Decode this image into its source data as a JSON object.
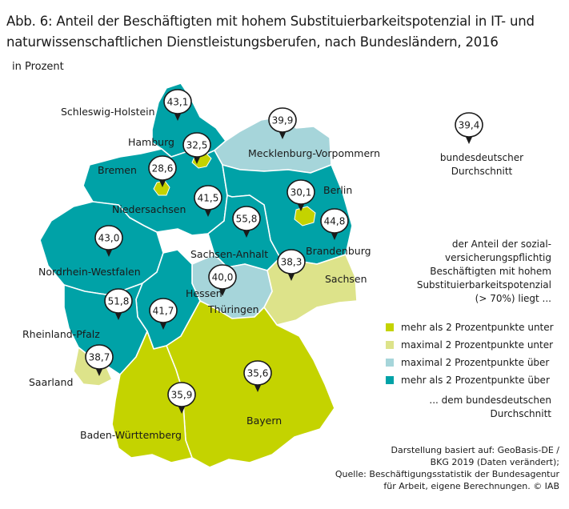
{
  "title": "Abb. 6: Anteil der Beschäftigten mit hohem Substituierbarkeitspotenzial in IT- und naturwissenschaftlichen Dienstleistungsberufen, nach Bundesländern, 2016",
  "subtitle": "in Prozent",
  "colors": {
    "more_below": "#c4d300",
    "max_below": "#dde38a",
    "max_above": "#a6d5da",
    "more_above": "#00a2a7",
    "border": "#ffffff",
    "pin": "#1a1a1a"
  },
  "national_average": {
    "value": "39,4",
    "label_line1": "bundesdeutscher",
    "label_line2": "Durchschnitt"
  },
  "legend": {
    "intro_lines": [
      "der Anteil der sozial-",
      "versicherungspflichtig",
      "Beschäftigten mit hohem",
      "Substituierbarkeitspotenzial",
      "(> 70%) liegt ..."
    ],
    "items": [
      {
        "label": "mehr als 2 Prozentpunkte unter",
        "color": "#c4d300"
      },
      {
        "label": "maximal 2 Prozentpunkte unter",
        "color": "#dde38a"
      },
      {
        "label": "maximal 2 Prozentpunkte über",
        "color": "#a6d5da"
      },
      {
        "label": "mehr als 2 Prozentpunkte über",
        "color": "#00a2a7"
      }
    ],
    "outro_lines": [
      "...  dem bundesdeutschen",
      "Durchschnitt"
    ]
  },
  "source_lines": [
    "Darstellung basiert auf: GeoBasis-DE /",
    "BKG 2019 (Daten verändert);",
    "Quelle: Beschäftigungsstatistik der Bundesagentur",
    "für Arbeit, eigene Berechnungen. © IAB"
  ],
  "states": [
    {
      "key": "schleswig_holstein",
      "name": "Schleswig-Holstein",
      "value": "43,1",
      "category": "more_above"
    },
    {
      "key": "hamburg",
      "name": "Hamburg",
      "value": "32,5",
      "category": "more_below"
    },
    {
      "key": "mecklenburg_vorpommern",
      "name": "Mecklenburg-Vorpommern",
      "value": "39,9",
      "category": "max_above"
    },
    {
      "key": "bremen",
      "name": "Bremen",
      "value": "28,6",
      "category": "more_below"
    },
    {
      "key": "niedersachsen",
      "name": "Niedersachsen",
      "value": "41,5",
      "category": "more_above"
    },
    {
      "key": "berlin",
      "name": "Berlin",
      "value": "30,1",
      "category": "more_below"
    },
    {
      "key": "brandenburg",
      "name": "Brandenburg",
      "value": "44,8",
      "category": "more_above"
    },
    {
      "key": "sachsen_anhalt",
      "name": "Sachsen-Anhalt",
      "value": "55,8",
      "category": "more_above"
    },
    {
      "key": "nordrhein_westfalen",
      "name": "Nordrhein-Westfalen",
      "value": "43,0",
      "category": "more_above"
    },
    {
      "key": "sachsen",
      "name": "Sachsen",
      "value": "38,3",
      "category": "max_below"
    },
    {
      "key": "thueringen",
      "name": "Thüringen",
      "value": "40,0",
      "category": "max_above"
    },
    {
      "key": "hessen",
      "name": "Hessen",
      "value": "41,7",
      "category": "more_above"
    },
    {
      "key": "rheinland_pfalz",
      "name": "Rheinland-Pfalz",
      "value": "51,8",
      "category": "more_above"
    },
    {
      "key": "saarland",
      "name": "Saarland",
      "value": "38,7",
      "category": "max_below"
    },
    {
      "key": "bayern",
      "name": "Bayern",
      "value": "35,6",
      "category": "more_below"
    },
    {
      "key": "baden_wuerttemberg",
      "name": "Baden-Württemberg",
      "value": "35,9",
      "category": "more_below"
    }
  ]
}
